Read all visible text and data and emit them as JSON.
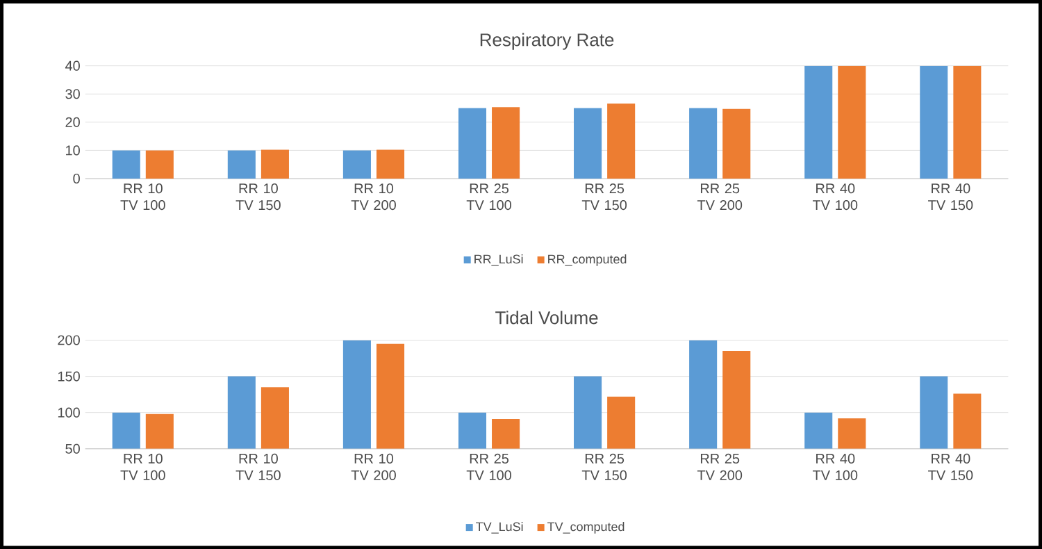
{
  "chart_data": [
    {
      "type": "bar",
      "title": "Respiratory Rate",
      "categories": [
        "RR 10 TV 100",
        "RR 10 TV 150",
        "RR 10 TV 200",
        "RR 25 TV 100",
        "RR 25 TV 150",
        "RR 25 TV 200",
        "RR 40 TV 100",
        "RR 40 TV 150"
      ],
      "series": [
        {
          "name": "RR_LuSi",
          "color": "#5b9bd5",
          "values": [
            10,
            10,
            10,
            25,
            25,
            25,
            40,
            40
          ]
        },
        {
          "name": "RR_computed",
          "color": "#ed7d31",
          "values": [
            10,
            10.2,
            10.2,
            25.3,
            26.6,
            24.7,
            40,
            40
          ]
        }
      ],
      "ylim": [
        0,
        40
      ],
      "yticks": [
        0,
        10,
        20,
        30,
        40
      ],
      "grid": "y",
      "legend": "bottom"
    },
    {
      "type": "bar",
      "title": "Tidal Volume",
      "categories": [
        "RR 10 TV 100",
        "RR 10 TV 150",
        "RR 10 TV 200",
        "RR 25 TV 100",
        "RR 25 TV 150",
        "RR 25 TV 200",
        "RR 40 TV 100",
        "RR 40 TV 150"
      ],
      "series": [
        {
          "name": "TV_LuSi",
          "color": "#5b9bd5",
          "values": [
            100,
            150,
            200,
            100,
            150,
            200,
            100,
            150
          ]
        },
        {
          "name": "TV_computed",
          "color": "#ed7d31",
          "values": [
            98,
            135,
            195,
            91,
            122,
            185,
            92,
            126
          ]
        }
      ],
      "ylim": [
        50,
        200
      ],
      "yticks": [
        50,
        100,
        150,
        200
      ],
      "grid": "y",
      "legend": "bottom"
    }
  ]
}
